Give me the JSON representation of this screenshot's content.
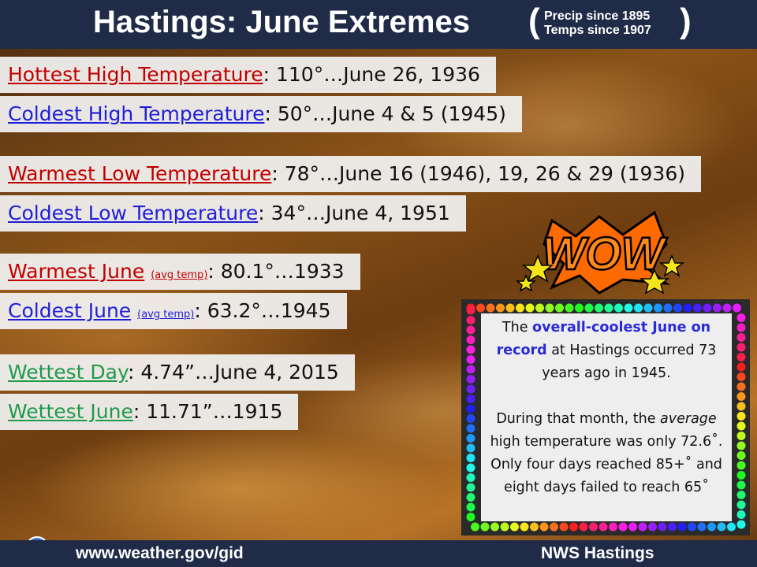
{
  "header": {
    "title": "Hastings: June Extremes",
    "notes": [
      "Precip since 1895",
      "Temps since 1907"
    ]
  },
  "records": [
    {
      "label": "Hottest High Temperature",
      "value": ": 110°…June 26, 1936",
      "color": "#c00000"
    },
    {
      "label": "Coldest High Temperature",
      "value": ": 50°…June 4 & 5 (1945)",
      "color": "#1f1fd8"
    },
    {
      "label": "Warmest Low Temperature",
      "value": ": 78°…June 16 (1946), 19, 26 & 29 (1936)",
      "color": "#c00000"
    },
    {
      "label": "Coldest Low Temperature",
      "value": ": 34°…June 4, 1951",
      "color": "#1f1fd8"
    },
    {
      "label": "Warmest June",
      "note": "(avg temp)",
      "value": ": 80.1°…1933",
      "color": "#c00000"
    },
    {
      "label": "Coldest June",
      "note": "(avg temp)",
      "value": ": 63.2°…1945",
      "color": "#1f1fd8"
    },
    {
      "label": "Wettest Day",
      "value": ": 4.74”…June 4, 2015",
      "color": "#1e9a4c"
    },
    {
      "label": "Wettest June",
      "value": ": 11.71”…1915",
      "color": "#1e9a4c"
    }
  ],
  "callout": {
    "badge": "WOW",
    "paragraphs": [
      [
        "The ",
        "overall-coolest June on record",
        " at Hastings occurred 73 years ago in 1945."
      ],
      [
        "During that month, the ",
        "average",
        " high temperature was only 72.6˚. Only four days reached 85+˚ and eight days failed to reach 65˚"
      ]
    ]
  },
  "footer": {
    "url": "www.weather.gov/gid",
    "office": "NWS Hastings"
  }
}
